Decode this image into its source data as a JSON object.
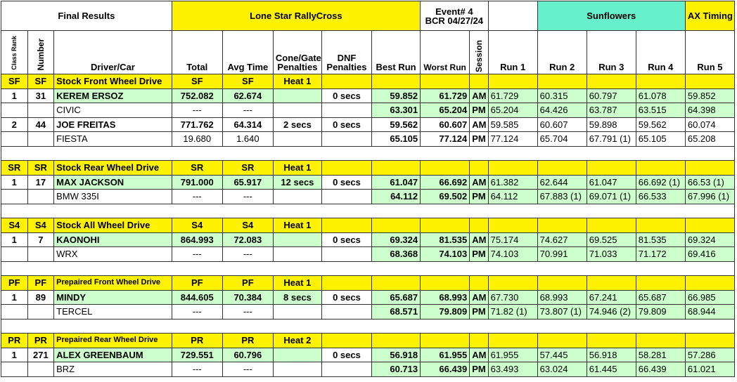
{
  "header": {
    "title": "Final Results",
    "series": "Lone Star RallyCross",
    "event_line1": "Event# 4",
    "event_line2": "BCR 04/27/24",
    "site": "Sunflowers",
    "timing_credit": "AX Timing by Wayne Strickel"
  },
  "columns": {
    "class_rank": "Class Rank",
    "number": "Number",
    "driver_car": "Driver/Car",
    "total": "Total",
    "avg_time": "Avg Time",
    "cone_line1": "Cone/Gate",
    "cone_line2": "Penalties",
    "dnf_line1": "DNF",
    "dnf_line2": "Penalties",
    "best_run": "Best Run",
    "worst_run": "Worst Run",
    "session": "Session",
    "runs": [
      "Run 1",
      "Run 2",
      "Run 3",
      "Run 4",
      "Run 5"
    ]
  },
  "classes": [
    {
      "code": "SF",
      "name": "Stock Front Wheel Drive",
      "heat": "Heat 1",
      "entry": {
        "rank": "1",
        "number": "31",
        "driver": "KEREM ERSOZ",
        "car": "CIVIC",
        "total": "752.082",
        "avg": "62.674",
        "cone": "",
        "dnf": "0 secs",
        "am": {
          "session": "AM",
          "best": "59.852",
          "worst": "61.729",
          "runs": [
            "61.729",
            "60.315",
            "60.797",
            "61.078",
            "59.852"
          ]
        },
        "pm": {
          "session": "PM",
          "total": "---",
          "avg": "---",
          "best": "63.301",
          "worst": "65.204",
          "runs": [
            "65.204",
            "64.426",
            "63.787",
            "63.515",
            "64.398"
          ]
        }
      },
      "entry2": {
        "rank": "2",
        "number": "44",
        "driver": "JOE FREITAS",
        "car": "FIESTA",
        "total": "771.762",
        "avg": "64.314",
        "cone": "2 secs",
        "dnf": "0 secs",
        "am": {
          "session": "AM",
          "best": "59.562",
          "worst": "60.607",
          "runs": [
            "59.585",
            "60.607",
            "59.898",
            "59.562",
            "60.074"
          ]
        },
        "pm": {
          "session": "PM",
          "total": "19.680",
          "avg": "1.640",
          "best": "65.105",
          "worst": "77.124",
          "runs": [
            "77.124",
            "65.704",
            "67.791 (1)",
            "65.105",
            "65.208"
          ]
        }
      }
    },
    {
      "code": "SR",
      "name": "Stock Rear Wheel Drive",
      "heat": "Heat 1",
      "entry": {
        "rank": "1",
        "number": "17",
        "driver": "MAX JACKSON",
        "car": "BMW 335I",
        "total": "791.000",
        "avg": "65.917",
        "cone": "12 secs",
        "dnf": "0 secs",
        "am": {
          "session": "AM",
          "best": "61.047",
          "worst": "66.692",
          "runs": [
            "61.382",
            "62.644",
            "61.047",
            "66.692 (1)",
            "66.53 (1)"
          ]
        },
        "pm": {
          "session": "PM",
          "total": "---",
          "avg": "---",
          "best": "64.112",
          "worst": "69.502",
          "runs": [
            "64.112",
            "67.883 (1)",
            "69.071 (1)",
            "66.533",
            "67.996 (1)"
          ]
        }
      }
    },
    {
      "code": "S4",
      "name": "Stock All Wheel Drive",
      "heat": "Heat 1",
      "entry": {
        "rank": "1",
        "number": "7",
        "driver": "KAONOHI",
        "car": "WRX",
        "total": "864.993",
        "avg": "72.083",
        "cone": "",
        "dnf": "0 secs",
        "am": {
          "session": "AM",
          "best": "69.324",
          "worst": "81.535",
          "runs": [
            "75.174",
            "74.627",
            "69.525",
            "81.535",
            "69.324"
          ]
        },
        "pm": {
          "session": "PM",
          "total": "---",
          "avg": "---",
          "best": "68.368",
          "worst": "74.103",
          "runs": [
            "74.103",
            "70.991",
            "71.033",
            "71.172",
            "69.416"
          ]
        }
      }
    },
    {
      "code": "PF",
      "name": "Prepaired Front Wheel Drive",
      "heat": "Heat 1",
      "entry": {
        "rank": "1",
        "number": "89",
        "driver": "MINDY",
        "car": "TERCEL",
        "total": "844.605",
        "avg": "70.384",
        "cone": "8 secs",
        "dnf": "0 secs",
        "am": {
          "session": "AM",
          "best": "65.687",
          "worst": "68.993",
          "runs": [
            "67.730",
            "68.993",
            "67.241",
            "65.687",
            "66.985"
          ]
        },
        "pm": {
          "session": "PM",
          "total": "---",
          "avg": "---",
          "best": "68.571",
          "worst": "79.809",
          "runs": [
            "71.82 (1)",
            "73.807 (1)",
            "74.946 (2)",
            "79.809",
            "68.944"
          ]
        }
      }
    },
    {
      "code": "PR",
      "name": "Prepaired Rear Wheel Drive",
      "heat": "Heat 2",
      "entry": {
        "rank": "1",
        "number": "271",
        "driver": "ALEX GREENBAUM",
        "car": "BRZ",
        "total": "729.551",
        "avg": "60.796",
        "cone": "",
        "dnf": "0 secs",
        "am": {
          "session": "AM",
          "best": "56.918",
          "worst": "61.955",
          "runs": [
            "61.955",
            "57.445",
            "56.918",
            "58.281",
            "57.286"
          ]
        },
        "pm": {
          "session": "PM",
          "total": "---",
          "avg": "---",
          "best": "60.713",
          "worst": "66.439",
          "runs": [
            "63.493",
            "63.024",
            "61.445",
            "66.439",
            "61.021"
          ]
        }
      }
    }
  ]
}
